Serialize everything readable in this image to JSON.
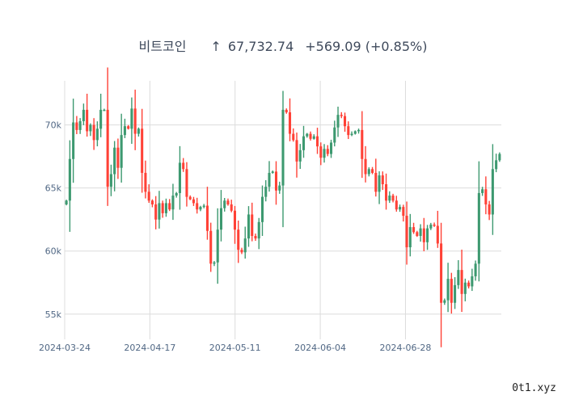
{
  "header": {
    "title": "비트코인",
    "arrow": "↑",
    "price": "67,732.74",
    "change": "+569.09 (+0.85%)"
  },
  "watermark": "0t1.xyz",
  "colors": {
    "up": "#3d9970",
    "down": "#ff4136",
    "grid": "#dcdcdc",
    "text": "#506784"
  },
  "chart_data": {
    "type": "candlestick",
    "title": "비트코인",
    "x_tick_labels": [
      "2024-03-24",
      "2024-04-17",
      "2024-05-11",
      "2024-06-04",
      "2024-06-28"
    ],
    "y_tick_labels": [
      "55k",
      "60k",
      "65k",
      "70k"
    ],
    "y_ticks": [
      55000,
      60000,
      65000,
      70000
    ],
    "ylim": [
      53000,
      73500
    ],
    "grid": true,
    "x_start": "2024-03-24",
    "x_end": "2024-07-25",
    "series": [
      {
        "name": "ohlc",
        "close": [
          64000,
          67300,
          70200,
          69600,
          70300,
          71200,
          69500,
          70000,
          68800,
          69700,
          71200,
          71200,
          65100,
          66100,
          68200,
          66600,
          69200,
          69900,
          69700,
          71300,
          69300,
          69700,
          66200,
          64700,
          64000,
          63700,
          62500,
          63800,
          63000,
          63800,
          63300,
          64400,
          64600,
          67000,
          66500,
          64300,
          64100,
          63800,
          63300,
          63500,
          63600,
          61600,
          59000,
          59100,
          61700,
          63400,
          64000,
          63700,
          63200,
          61700,
          60100,
          59900,
          61000,
          62900,
          61200,
          61000,
          62300,
          64300,
          65100,
          66200,
          66300,
          64800,
          65200,
          71200,
          71000,
          69300,
          68800,
          67100,
          68000,
          69100,
          69300,
          68900,
          69100,
          68300,
          67400,
          68100,
          67700,
          68600,
          69800,
          70800,
          70700,
          69900,
          69200,
          69300,
          69500,
          69600,
          67300,
          66100,
          66500,
          66200,
          64700,
          66000,
          65300,
          64000,
          64400,
          64000,
          63300,
          63500,
          62800,
          60300,
          61900,
          61500,
          61200,
          61800,
          60700,
          61800,
          62100,
          62000,
          60600,
          55900,
          56100,
          57800,
          55900,
          57300,
          58500,
          56600,
          57500,
          57200,
          58000,
          59000,
          64600,
          64900,
          63700,
          62900,
          66500,
          67200,
          67700
        ]
      }
    ]
  }
}
